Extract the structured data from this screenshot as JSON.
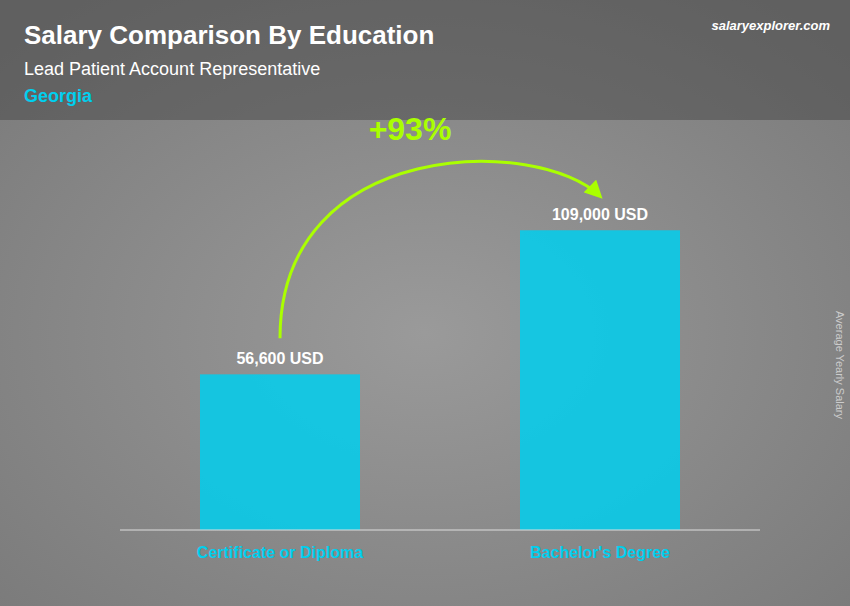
{
  "chart_data": {
    "type": "bar",
    "title": "Salary Comparison By Education",
    "subtitle": "Lead Patient Account Representative",
    "annotations": [
      "Georgia",
      "+93%",
      "salaryexplorer.com"
    ],
    "y_label": "Average Yearly Salary",
    "categories": [
      "Certificate or Diploma",
      "Bachelor's Degree"
    ],
    "values": [
      56600,
      109000
    ],
    "value_labels": [
      "56,600 USD",
      "109,000 USD"
    ],
    "color": "#00CFEE",
    "ylim": [
      0,
      120000
    ],
    "grid": false,
    "data_labels": true,
    "tick_labels": false
  }
}
